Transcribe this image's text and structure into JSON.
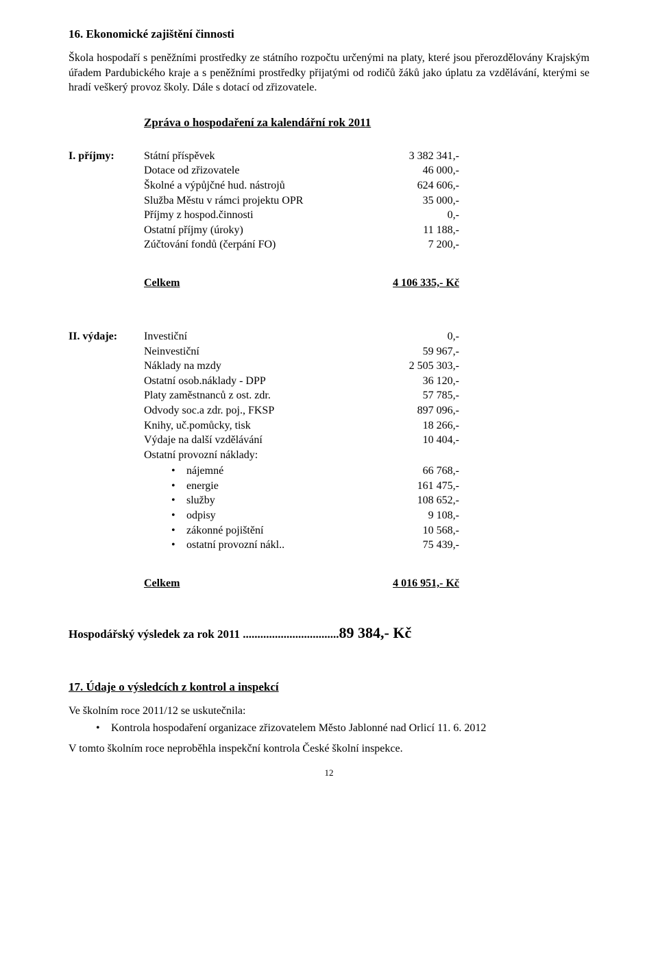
{
  "section16": {
    "heading": "16. Ekonomické zajištění činnosti",
    "para": "Škola hospodaří s peněžními prostředky ze státního rozpočtu určenými na platy, které jsou přerozdělovány Krajským úřadem Pardubického kraje a s peněžními prostředky přijatými od rodičů žáků jako úplatu za vzdělávání, kterými se hradí veškerý provoz školy. Dále s dotací od zřizovatele.",
    "report_heading": "Zpráva o hospodaření za kalendářní rok 2011",
    "income": {
      "label": "I. příjmy:",
      "rows": [
        {
          "item": "Státní příspěvek",
          "value": "3 382 341,-"
        },
        {
          "item": "Dotace od zřizovatele",
          "value": "46 000,-"
        },
        {
          "item": "Školné  a výpůjčné hud. nástrojů",
          "value": "624 606,-"
        },
        {
          "item": "Služba Městu v rámci projektu OPR",
          "value": "35 000,-"
        },
        {
          "item": "Příjmy z hospod.činnosti",
          "value": "0,-"
        },
        {
          "item": "Ostatní příjmy (úroky)",
          "value": "11 188,-"
        },
        {
          "item": "Zúčtování fondů (čerpání FO)",
          "value": "7 200,-"
        }
      ],
      "total_label": "Celkem",
      "total_value": "4 106 335,- Kč"
    },
    "expenses": {
      "label": "II. výdaje:",
      "rows": [
        {
          "item": "Investiční",
          "value": "0,-"
        },
        {
          "item": "Neinvestiční",
          "value": "59 967,-"
        },
        {
          "item": "Náklady na mzdy",
          "value": "2 505 303,-"
        },
        {
          "item": "Ostatní osob.náklady - DPP",
          "value": "36 120,-"
        },
        {
          "item": "Platy zaměstnanců z ost. zdr.",
          "value": "57 785,-"
        },
        {
          "item": "Odvody soc.a zdr. poj., FKSP",
          "value": "897 096,-"
        },
        {
          "item": "Knihy, uč.pomůcky, tisk",
          "value": "18 266,-"
        },
        {
          "item": "Výdaje na další vzdělávání",
          "value": "10 404,-"
        },
        {
          "item": "Ostatní provozní náklady:",
          "value": ""
        }
      ],
      "bullets": [
        {
          "item": "nájemné",
          "value": "66 768,-"
        },
        {
          "item": "energie",
          "value": "161 475,-"
        },
        {
          "item": "služby",
          "value": "108 652,-"
        },
        {
          "item": "odpisy",
          "value": "9 108,-"
        },
        {
          "item": "zákonné pojištění",
          "value": "10 568,-"
        },
        {
          "item": "ostatní provozní nákl..",
          "value": "75 439,-"
        }
      ],
      "total_label": "Celkem",
      "total_value": "4 016 951,- Kč"
    },
    "result_label": "Hospodářský výsledek za rok 2011 .................................",
    "result_value": "89 384,- Kč"
  },
  "section17": {
    "heading": "17. Údaje o výsledcích z kontrol a inspekcí",
    "line1": "Ve školním roce 2011/12 se uskutečnila:",
    "bullet": "Kontrola hospodaření organizace zřizovatelem Město Jablonné nad Orlicí 11. 6. 2012",
    "line2": "V tomto školním roce neproběhla inspekční kontrola České školní inspekce."
  },
  "page_number": "12"
}
